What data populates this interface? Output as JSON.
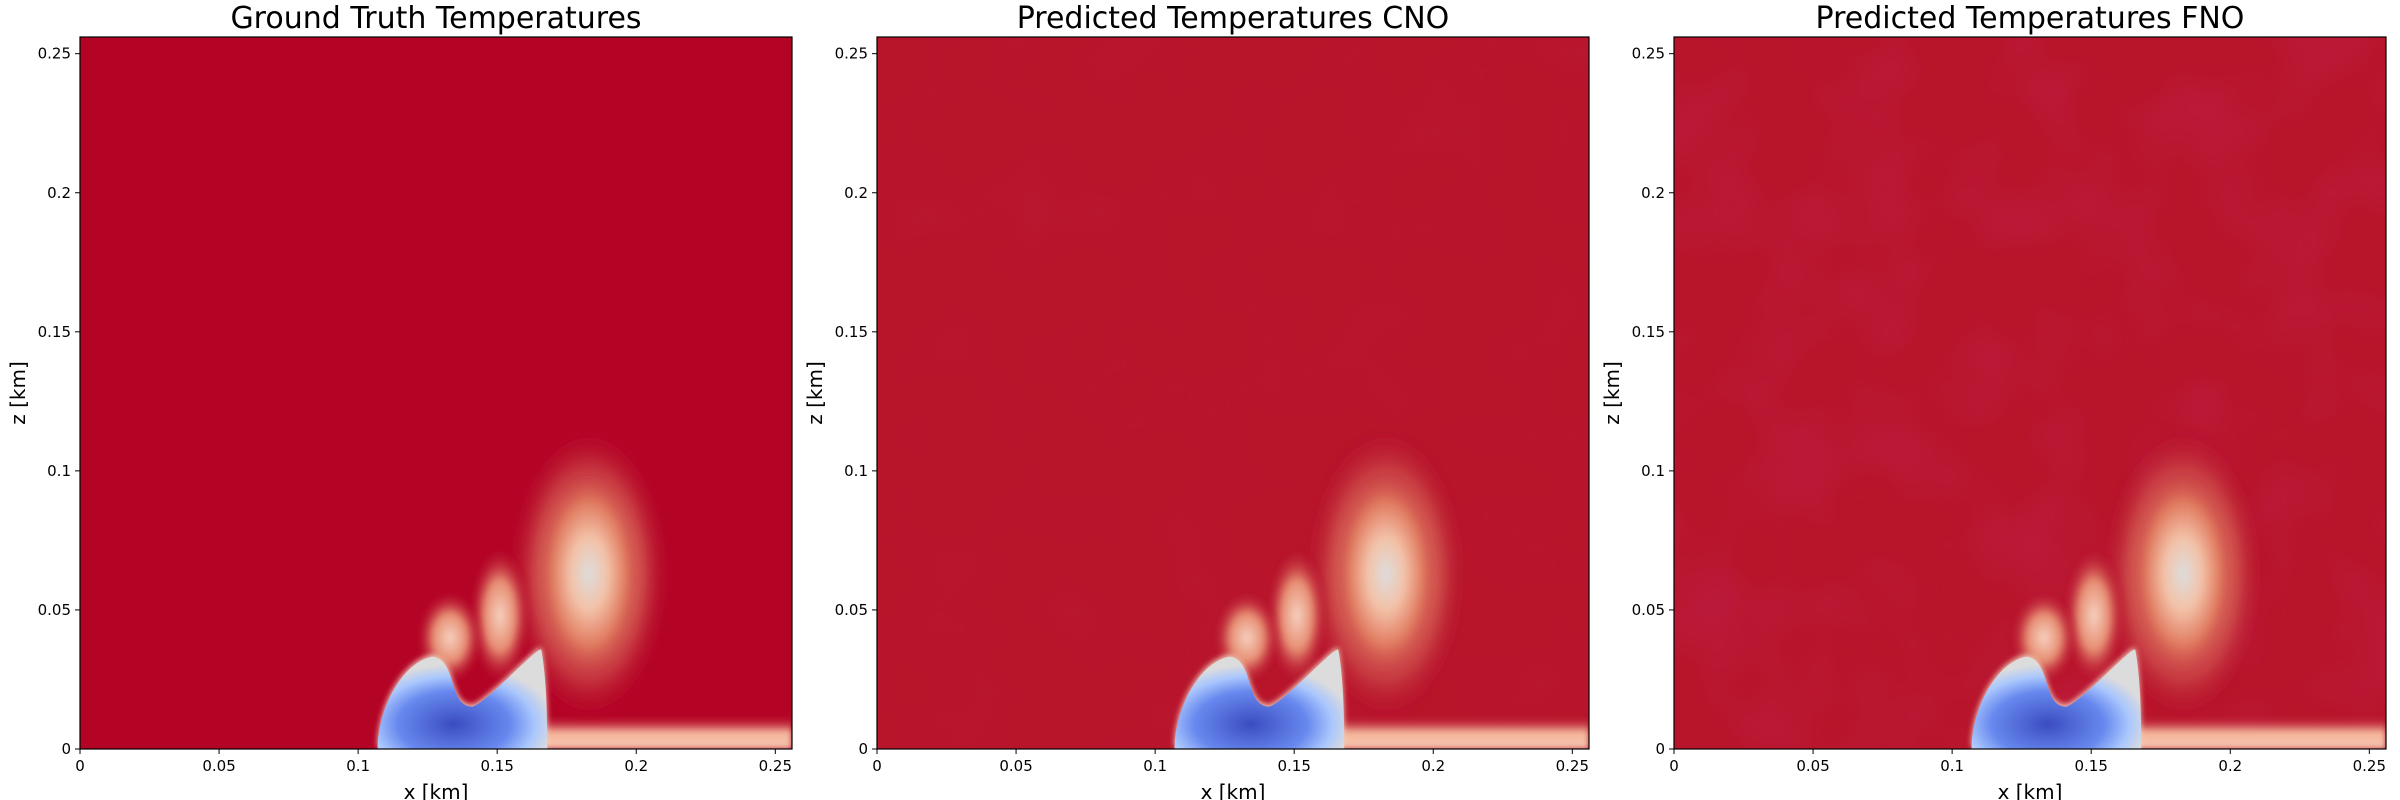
{
  "chart_data": [
    {
      "type": "heatmap",
      "title": "Ground Truth Temperatures",
      "xlabel": "x [km]",
      "ylabel": "z [km]",
      "xlim": [
        0,
        0.256
      ],
      "ylim": [
        0,
        0.256
      ],
      "xticks": [
        "0",
        "0.05",
        "0.1",
        "0.15",
        "0.2",
        "0.25"
      ],
      "yticks": [
        "0",
        "0.05",
        "0.1",
        "0.15",
        "0.2",
        "0.25"
      ],
      "colormap": "coolwarm",
      "background_color": "#b40426",
      "noise": 0,
      "grid": false
    },
    {
      "type": "heatmap",
      "title": "Predicted Temperatures CNO",
      "xlabel": "x [km]",
      "ylabel": "z [km]",
      "xlim": [
        0,
        0.256
      ],
      "ylim": [
        0,
        0.256
      ],
      "xticks": [
        "0",
        "0.05",
        "0.1",
        "0.15",
        "0.2",
        "0.25"
      ],
      "yticks": [
        "0",
        "0.05",
        "0.1",
        "0.15",
        "0.2",
        "0.25"
      ],
      "colormap": "coolwarm",
      "background_color": "#b8152b",
      "noise": 0.2,
      "grid": false
    },
    {
      "type": "heatmap",
      "title": "Predicted Temperatures FNO",
      "xlabel": "x [km]",
      "ylabel": "z [km]",
      "xlim": [
        0,
        0.256
      ],
      "ylim": [
        0,
        0.256
      ],
      "xticks": [
        "0",
        "0.05",
        "0.1",
        "0.15",
        "0.2",
        "0.25"
      ],
      "yticks": [
        "0",
        "0.05",
        "0.1",
        "0.15",
        "0.2",
        "0.25"
      ],
      "colormap": "coolwarm",
      "background_color": "#b8152b",
      "noise": 0.6,
      "grid": false
    }
  ]
}
